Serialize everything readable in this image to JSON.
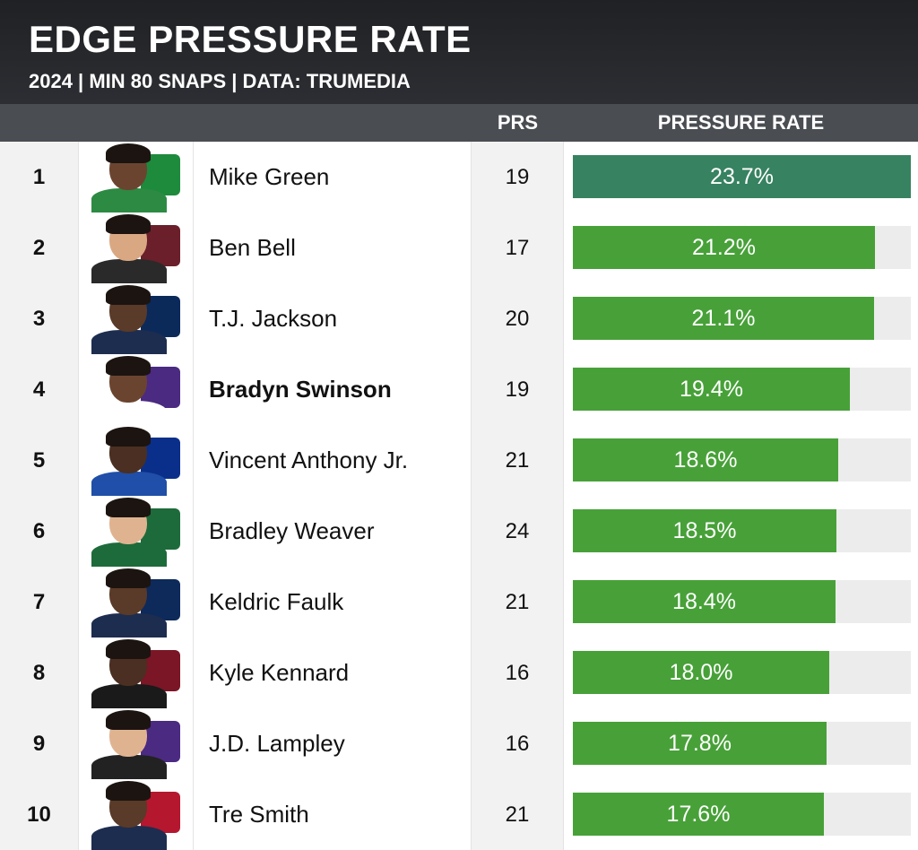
{
  "title": "EDGE PRESSURE RATE",
  "subtitle": "2024 | MIN 80 SNAPS | DATA: TRUMEDIA",
  "columns": {
    "prs": "PRS",
    "rate": "PRESSURE RATE"
  },
  "colors": {
    "top": "#378260",
    "bar": "#47a138",
    "track": "#ececec",
    "header": "#2c2e33",
    "colhead": "#4a4d52"
  },
  "chart_data": {
    "type": "bar",
    "orientation": "horizontal",
    "title": "EDGE PRESSURE RATE",
    "subtitle": "2024 | MIN 80 SNAPS | DATA: TRUMEDIA",
    "xlim": [
      0,
      23.7
    ],
    "rows": [
      {
        "rank": "1",
        "name": "Mike Green",
        "prs": "19",
        "rate": 23.7,
        "label": "23.7%",
        "bold": false,
        "highlight": true,
        "skin": "#6b4430",
        "jersey": "#2c8a43",
        "logo": "#1e8a3c"
      },
      {
        "rank": "2",
        "name": "Ben Bell",
        "prs": "17",
        "rate": 21.2,
        "label": "21.2%",
        "bold": false,
        "highlight": false,
        "skin": "#d9a883",
        "jersey": "#2a2a2a",
        "logo": "#6b1f2a"
      },
      {
        "rank": "3",
        "name": "T.J. Jackson",
        "prs": "20",
        "rate": 21.1,
        "label": "21.1%",
        "bold": false,
        "highlight": false,
        "skin": "#5a3a28",
        "jersey": "#1d2d4f",
        "logo": "#0b2a5a"
      },
      {
        "rank": "4",
        "name": "Bradyn Swinson",
        "prs": "19",
        "rate": 19.4,
        "label": "19.4%",
        "bold": true,
        "highlight": false,
        "skin": "#6b4430",
        "jersey": "#ffffff",
        "logo": "#4b2a82"
      },
      {
        "rank": "5",
        "name": "Vincent Anthony Jr.",
        "prs": "21",
        "rate": 18.6,
        "label": "18.6%",
        "bold": false,
        "highlight": false,
        "skin": "#4a2f22",
        "jersey": "#1f4fa8",
        "logo": "#0a2f8a"
      },
      {
        "rank": "6",
        "name": "Bradley Weaver",
        "prs": "24",
        "rate": 18.5,
        "label": "18.5%",
        "bold": false,
        "highlight": false,
        "skin": "#e0b390",
        "jersey": "#1d6b3a",
        "logo": "#1d6b3a"
      },
      {
        "rank": "7",
        "name": "Keldric Faulk",
        "prs": "21",
        "rate": 18.4,
        "label": "18.4%",
        "bold": false,
        "highlight": false,
        "skin": "#5a3a28",
        "jersey": "#1d2d4f",
        "logo": "#0d2a5a"
      },
      {
        "rank": "8",
        "name": "Kyle Kennard",
        "prs": "16",
        "rate": 18.0,
        "label": "18.0%",
        "bold": false,
        "highlight": false,
        "skin": "#4a2f22",
        "jersey": "#1a1a1a",
        "logo": "#7a1626"
      },
      {
        "rank": "9",
        "name": "J.D. Lampley",
        "prs": "16",
        "rate": 17.8,
        "label": "17.8%",
        "bold": false,
        "highlight": false,
        "skin": "#e0b390",
        "jersey": "#222222",
        "logo": "#4b2a82"
      },
      {
        "rank": "10",
        "name": "Tre Smith",
        "prs": "21",
        "rate": 17.6,
        "label": "17.6%",
        "bold": false,
        "highlight": false,
        "skin": "#5a3a28",
        "jersey": "#1d2d4f",
        "logo": "#b5172f"
      }
    ]
  }
}
